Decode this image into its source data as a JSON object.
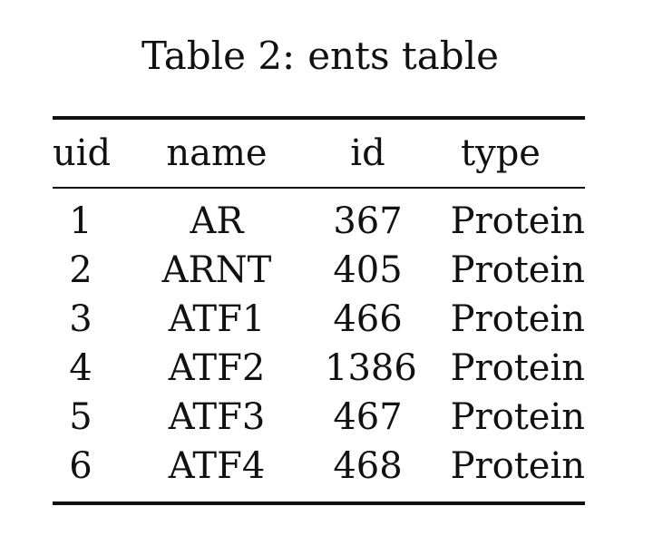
{
  "caption": {
    "label": "Table 2:",
    "text": "ents table"
  },
  "table": {
    "columns": [
      "uid",
      "name",
      "id",
      "type"
    ],
    "rows": [
      [
        "1",
        "AR",
        "367",
        "Protein"
      ],
      [
        "2",
        "ARNT",
        "405",
        "Protein"
      ],
      [
        "3",
        "ATF1",
        "466",
        "Protein"
      ],
      [
        "4",
        "ATF2",
        "1386",
        "Protein"
      ],
      [
        "5",
        "ATF3",
        "467",
        "Protein"
      ],
      [
        "6",
        "ATF4",
        "468",
        "Protein"
      ]
    ]
  }
}
